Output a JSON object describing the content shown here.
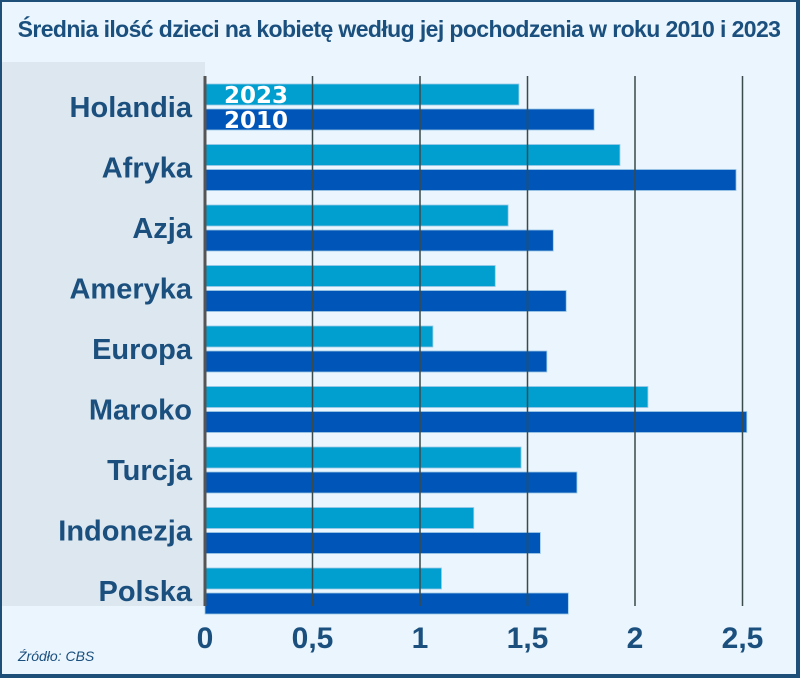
{
  "title": "Średnia ilość dzieci na kobietę według jej pochodzenia w roku 2010 i 2023",
  "source": "Źródło: CBS",
  "colors": {
    "2023": "#009fcf",
    "2010": "#0055b8",
    "label_panel": "#dce7ef",
    "text": "#1a4f7e"
  },
  "chart_data": {
    "type": "bar",
    "orientation": "horizontal",
    "title": "Średnia ilość dzieci na kobietę według jej pochodzenia w roku 2010 i 2023",
    "categories": [
      "Holandia",
      "Afryka",
      "Azja",
      "Ameryka",
      "Europa",
      "Maroko",
      "Turcja",
      "Indonezja",
      "Polska"
    ],
    "series": [
      {
        "name": "2023",
        "values": [
          1.46,
          1.93,
          1.41,
          1.35,
          1.06,
          2.06,
          1.47,
          1.25,
          1.1
        ]
      },
      {
        "name": "2010",
        "values": [
          1.81,
          2.47,
          1.62,
          1.68,
          1.59,
          2.52,
          1.73,
          1.56,
          1.69
        ]
      }
    ],
    "xlim": [
      0,
      2.5
    ],
    "xticks": [
      "0",
      "0,5",
      "1",
      "1,5",
      "2",
      "2,5"
    ],
    "grid": true,
    "legend": "inside-first-bars"
  }
}
